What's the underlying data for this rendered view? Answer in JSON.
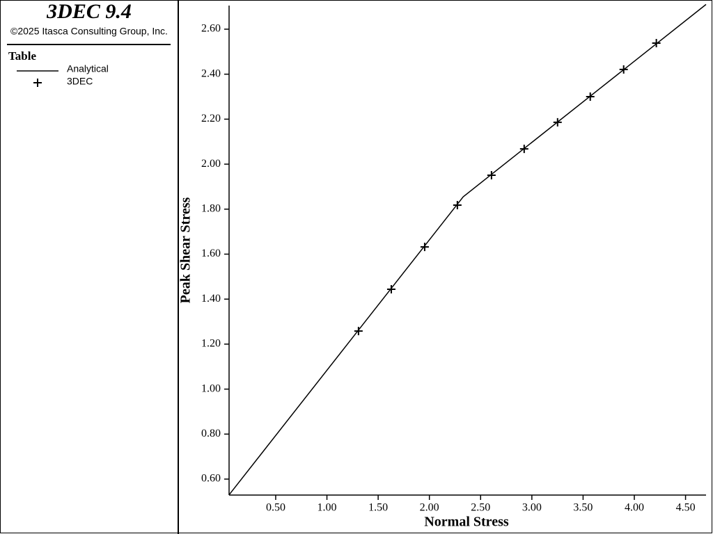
{
  "chart_data": {
    "type": "line",
    "title": "3DEC 9.4",
    "subtitle": "©2025 Itasca Consulting Group, Inc.",
    "legend_title": "Table",
    "xlabel": "Normal Stress",
    "ylabel": "Peak Shear Stress",
    "xlim": [
      0.045,
      4.7
    ],
    "ylim": [
      0.529,
      2.705
    ],
    "xticks": [
      {
        "value": 0.5,
        "label": "0.50"
      },
      {
        "value": 1.0,
        "label": "1.00"
      },
      {
        "value": 1.5,
        "label": "1.50"
      },
      {
        "value": 2.0,
        "label": "2.00"
      },
      {
        "value": 2.5,
        "label": "2.50"
      },
      {
        "value": 3.0,
        "label": "3.00"
      },
      {
        "value": 3.5,
        "label": "3.50"
      },
      {
        "value": 4.0,
        "label": "4.00"
      },
      {
        "value": 4.5,
        "label": "4.50"
      }
    ],
    "yticks": [
      {
        "value": 0.6,
        "label": "0.60"
      },
      {
        "value": 0.8,
        "label": "0.80"
      },
      {
        "value": 1.0,
        "label": "1.00"
      },
      {
        "value": 1.2,
        "label": "1.20"
      },
      {
        "value": 1.4,
        "label": "1.40"
      },
      {
        "value": 1.6,
        "label": "1.60"
      },
      {
        "value": 1.8,
        "label": "1.80"
      },
      {
        "value": 2.0,
        "label": "2.00"
      },
      {
        "value": 2.2,
        "label": "2.20"
      },
      {
        "value": 2.4,
        "label": "2.40"
      },
      {
        "value": 2.6,
        "label": "2.60"
      }
    ],
    "series": [
      {
        "name": "Analytical",
        "color": "#000000",
        "style": "line",
        "x": [
          0.045,
          2.33,
          4.7
        ],
        "values": [
          0.53,
          1.855,
          2.71
        ]
      },
      {
        "name": "3DEC",
        "color": "#000000",
        "style": "marker",
        "x": [
          1.308,
          1.628,
          1.954,
          2.273,
          2.606,
          2.925,
          3.251,
          3.57,
          3.896,
          4.215
        ],
        "values": [
          1.258,
          1.444,
          1.632,
          1.818,
          1.951,
          2.068,
          2.186,
          2.3,
          2.421,
          2.538
        ]
      }
    ]
  }
}
